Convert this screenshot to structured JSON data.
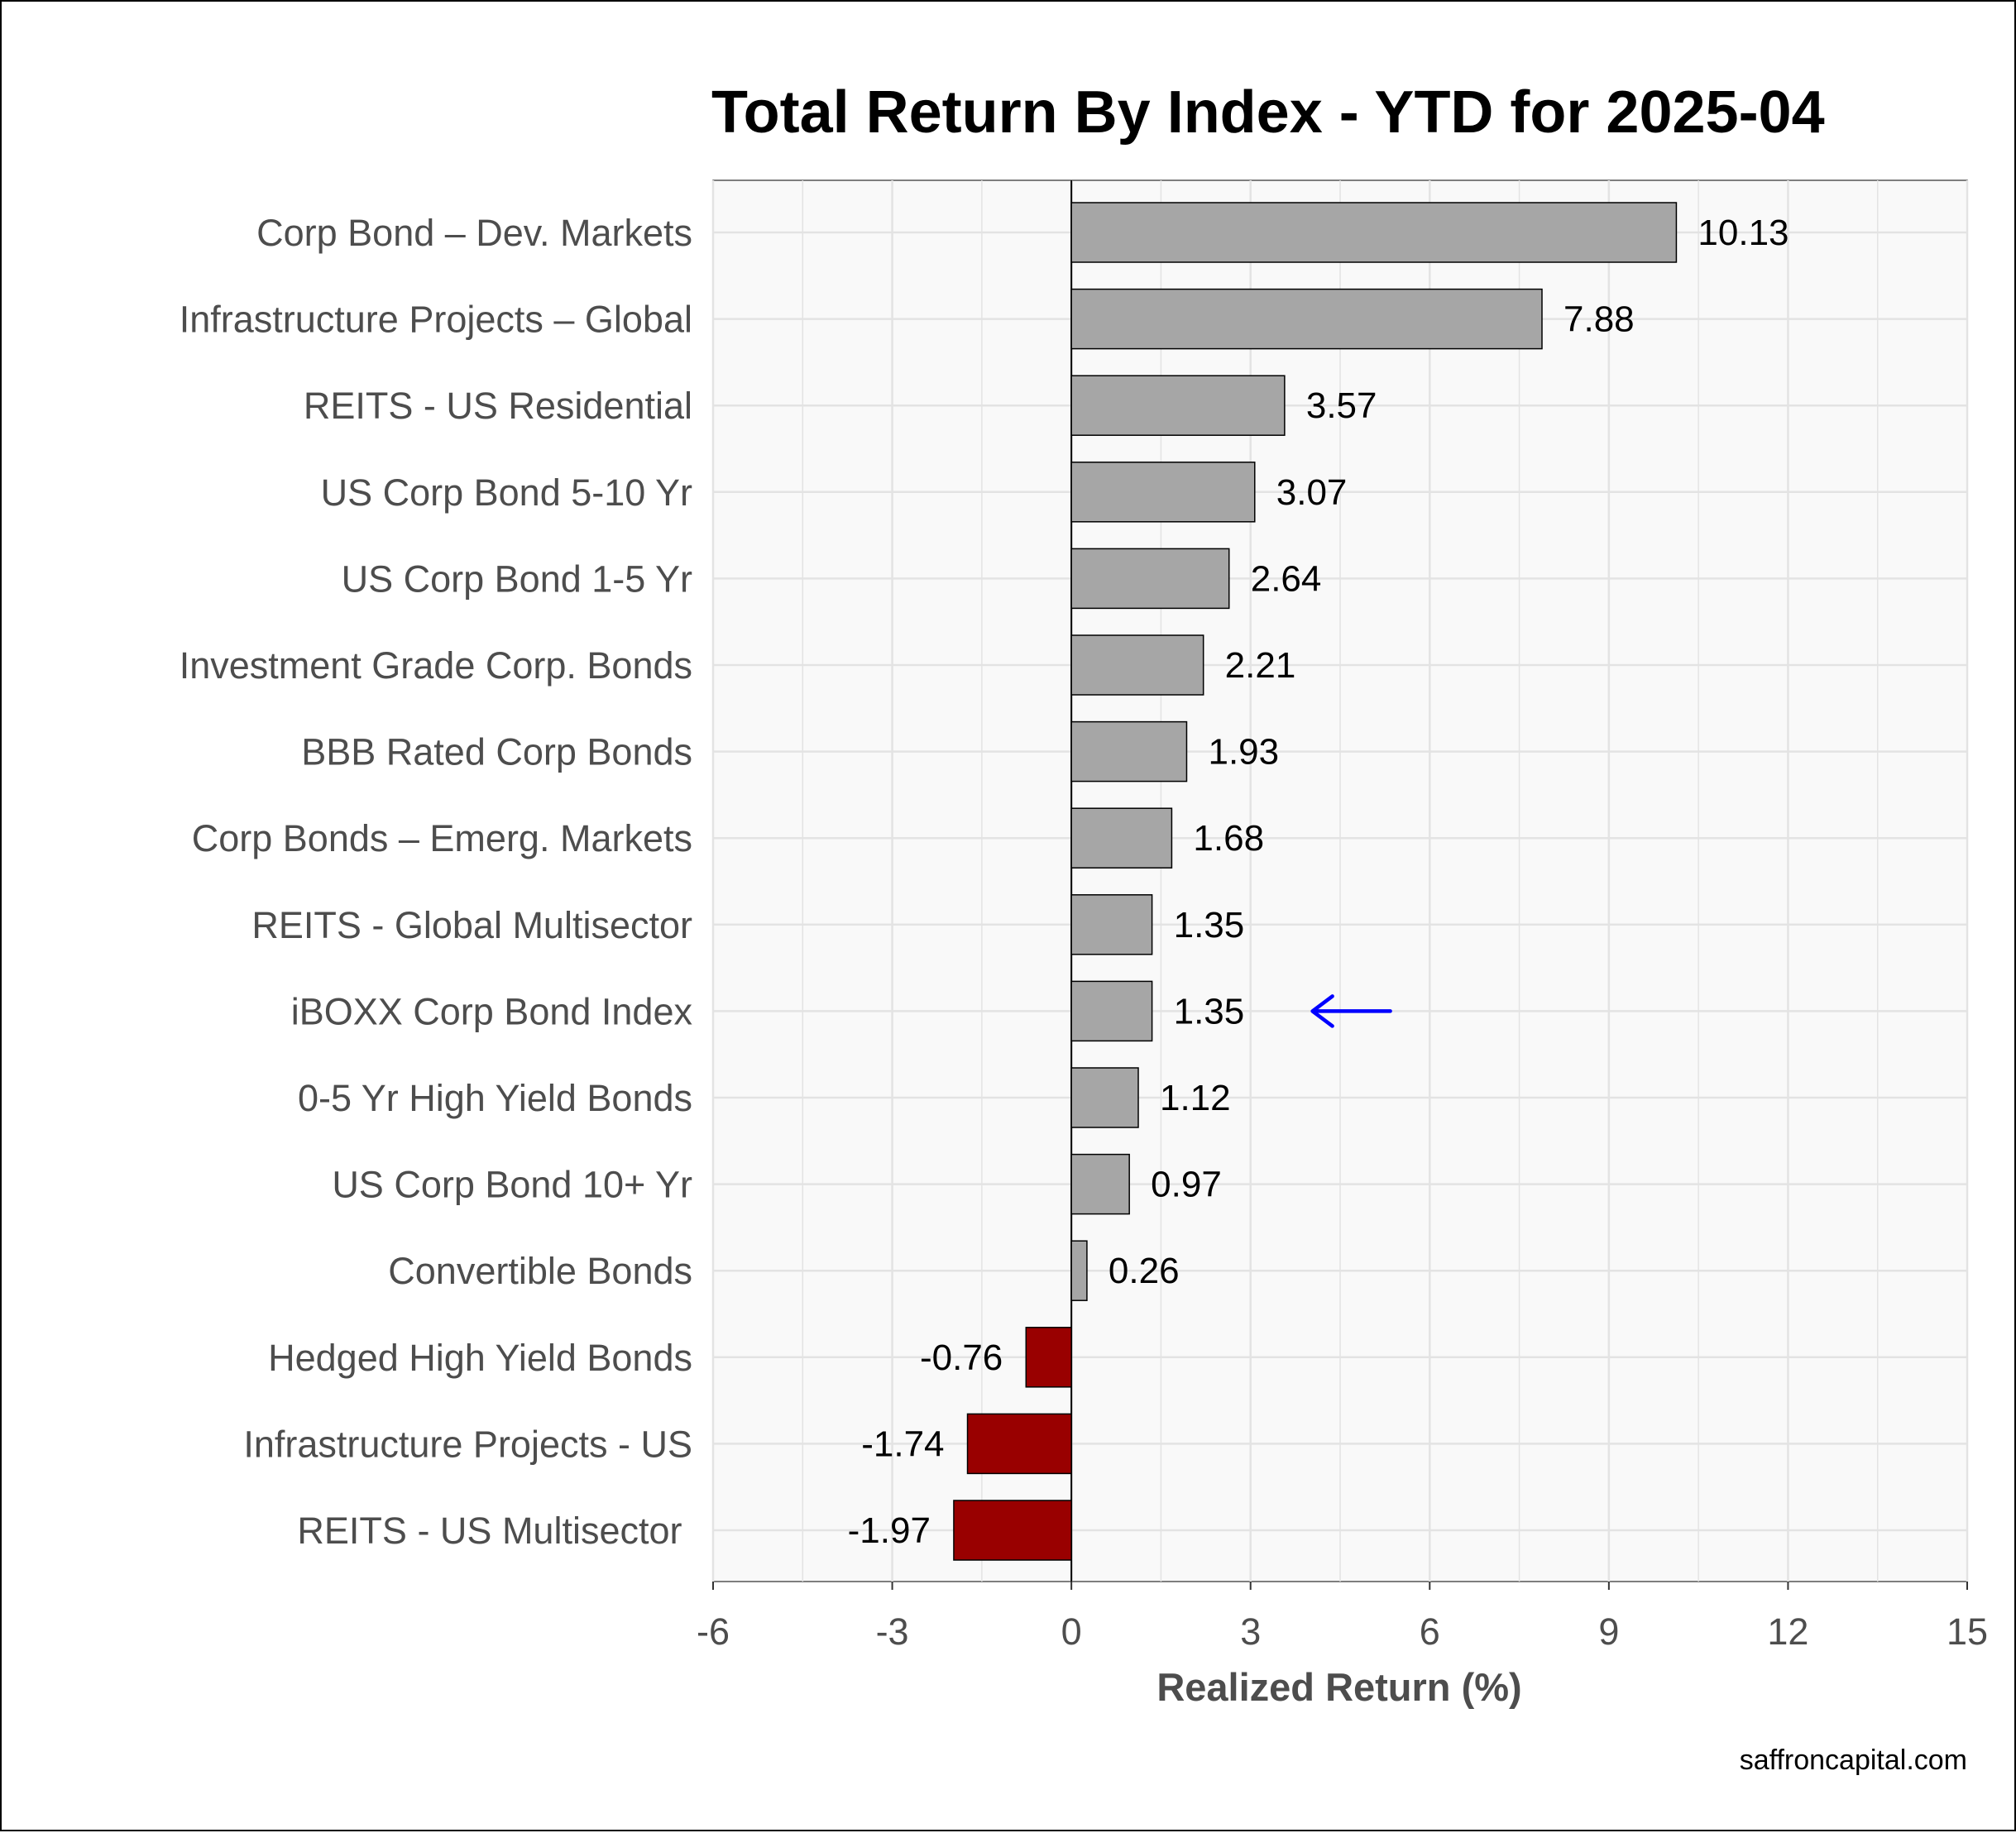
{
  "source_text": "saffroncapital.com",
  "chart_data": {
    "type": "bar",
    "orientation": "horizontal",
    "title": "Total Return By Index - YTD for 2025-04",
    "xlabel": "Realized Return (%)",
    "ylabel": "",
    "xlim": [
      -6,
      15
    ],
    "xticks": [
      -6,
      -3,
      0,
      3,
      6,
      9,
      12,
      15
    ],
    "grid": true,
    "categories": [
      "Corp Bond – Dev. Markets",
      "Infrastructure Projects – Global",
      "REITS - US Residential",
      "US Corp Bond 5-10 Yr",
      "US Corp Bond 1-5 Yr",
      "Investment Grade Corp. Bonds",
      "BBB Rated Corp Bonds",
      "Corp Bonds – Emerg. Markets",
      "REITS - Global Multisector",
      "iBOXX Corp Bond Index",
      "0-5 Yr High Yield Bonds",
      "US Corp Bond 10+ Yr",
      "Convertible Bonds",
      "Hedged High Yield Bonds",
      "Infrastructure Projects - US",
      "REITS - US Multisector "
    ],
    "values": [
      10.13,
      7.88,
      3.57,
      3.07,
      2.64,
      2.21,
      1.93,
      1.68,
      1.35,
      1.35,
      1.12,
      0.97,
      0.26,
      -0.76,
      -1.74,
      -1.97
    ],
    "value_labels": [
      "10.13",
      "7.88",
      "3.57",
      "3.07",
      "2.64",
      "2.21",
      "1.93",
      "1.68",
      "1.35",
      "1.35",
      "1.12",
      "0.97",
      "0.26",
      "-0.76",
      "-1.74",
      "-1.97"
    ],
    "highlight_category": "iBOXX Corp Bond Index",
    "colors": {
      "positive_bar": "#a6a6a6",
      "negative_bar": "#990000",
      "highlight_label": "#0000ff",
      "arrow": "#0000ff",
      "panel_background": "#f9f9f9",
      "grid": "#e3e3e3"
    }
  }
}
